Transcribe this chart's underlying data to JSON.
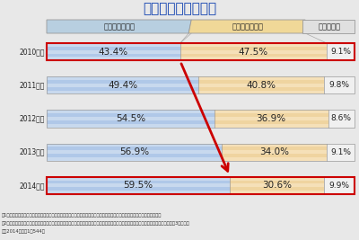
{
  "title": "正社員採用について",
  "years": [
    "2010年度",
    "2011年度",
    "2012年度",
    "2013年度",
    "2014年度"
  ],
  "col1_label": "採用予定がある",
  "col2_label": "採用予定はない",
  "col3_label": "分からない",
  "col1_values": [
    43.4,
    49.4,
    54.5,
    56.9,
    59.5
  ],
  "col2_values": [
    47.5,
    40.8,
    36.9,
    34.0,
    30.6
  ],
  "col3_values": [
    9.1,
    9.8,
    8.6,
    9.1,
    9.9
  ],
  "col1_color": "#c8d9ee",
  "col1_stripe_color": "#b0c8e8",
  "col2_color": "#f5e0b8",
  "col2_stripe_color": "#efd4a0",
  "col3_color": "#f0f0f0",
  "col1_header_color": "#b8cfe0",
  "col2_header_color": "#f0d898",
  "col3_header_color": "#e0e0e0",
  "border_color": "#999999",
  "title_color": "#1040b0",
  "highlight_color": "#cc0000",
  "arrow_color": "#cc0000",
  "note1": "注1：「採用予定がある」は、「増加する（見込み含む）」「変わらない（見込み含む）」「減少する（見込み含む）」の合計",
  "note2": "注2：有効回答社数は、２０１０年度が１万６２４社、２０１１年度が１万９９０社、２０１２年度が１万７１１社、２０１３年度が１万3３８社、",
  "note3": "　　2014年度が1万544社",
  "bg_color": "#e8e8e8"
}
